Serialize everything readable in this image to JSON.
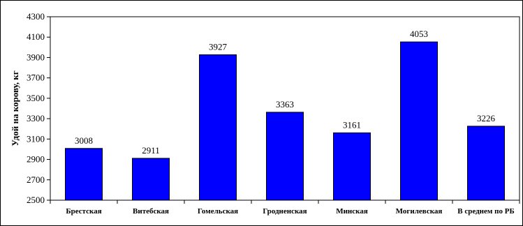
{
  "chart_data": {
    "type": "bar",
    "title": "",
    "xlabel": "",
    "ylabel": "Удой на корову, кг",
    "ylim": [
      2500,
      4300
    ],
    "yticks": [
      2500,
      2700,
      2900,
      3100,
      3300,
      3500,
      3700,
      3900,
      4100,
      4300
    ],
    "grid": false,
    "legend": "none",
    "bar_color": "#0000FF",
    "categories": [
      "Брестская",
      "Витебская",
      "Гомельская",
      "Гродненская",
      "Минская",
      "Могилевская",
      "В среднем по РБ"
    ],
    "series": [
      {
        "values": [
          3008,
          2911,
          3927,
          3363,
          3161,
          4053,
          3226
        ]
      }
    ]
  }
}
